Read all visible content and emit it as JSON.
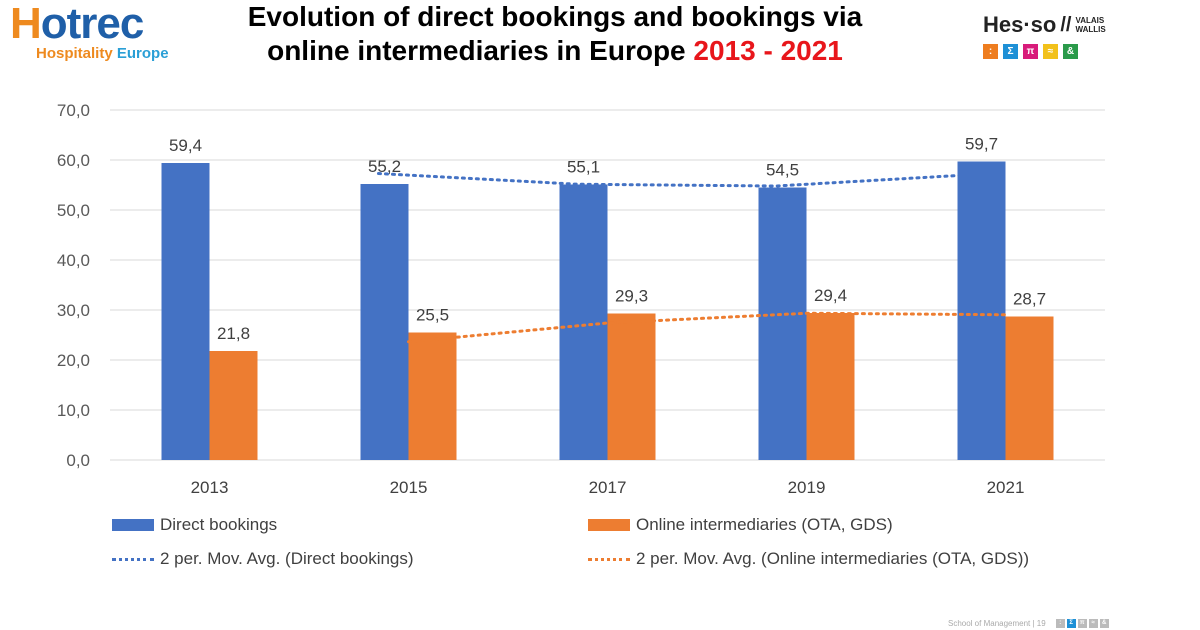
{
  "header": {
    "logo_left": {
      "main": "Hotrec",
      "sub_a": "Hospitality",
      "sub_b": "Europe"
    },
    "title_line1": "Evolution of direct bookings and bookings via",
    "title_line2": "online intermediaries in Europe ",
    "title_years": "2013 - 2021",
    "logo_right": {
      "main": "Hes·so",
      "small1": "VALAIS",
      "small2": "WALLIS",
      "symbols": [
        ":",
        "Σ",
        "π",
        "≈",
        "&"
      ],
      "colors": [
        "#ee7d1f",
        "#1e90d6",
        "#d81b7a",
        "#f2c11a",
        "#2a9a4a"
      ]
    }
  },
  "footer": {
    "text": "School of Management | 19"
  },
  "chart_data": {
    "type": "bar",
    "categories": [
      "2013",
      "2015",
      "2017",
      "2019",
      "2021"
    ],
    "ylim": [
      0,
      70
    ],
    "yticks": [
      "0,0",
      "10,0",
      "20,0",
      "30,0",
      "40,0",
      "50,0",
      "60,0",
      "70,0"
    ],
    "grid": true,
    "legend_position": "bottom",
    "series": [
      {
        "name": "Direct bookings",
        "values": [
          59.4,
          55.2,
          55.1,
          54.5,
          59.7
        ],
        "labels": [
          "59,4",
          "55,2",
          "55,1",
          "54,5",
          "59,7"
        ],
        "color": "#4472c4"
      },
      {
        "name": "Online intermediaries (OTA, GDS)",
        "values": [
          21.8,
          25.5,
          29.3,
          29.4,
          28.7
        ],
        "labels": [
          "21,8",
          "25,5",
          "29,3",
          "29,4",
          "28,7"
        ],
        "color": "#ed7d31"
      }
    ],
    "trendlines": [
      {
        "name": "2 per. Mov. Avg. (Direct bookings)",
        "values": [
          null,
          57.3,
          55.15,
          54.8,
          57.1
        ],
        "color": "#4472c4"
      },
      {
        "name": "2 per. Mov. Avg. (Online intermediaries (OTA, GDS))",
        "values": [
          null,
          23.65,
          27.4,
          29.35,
          29.05
        ],
        "color": "#ed7d31"
      }
    ]
  }
}
